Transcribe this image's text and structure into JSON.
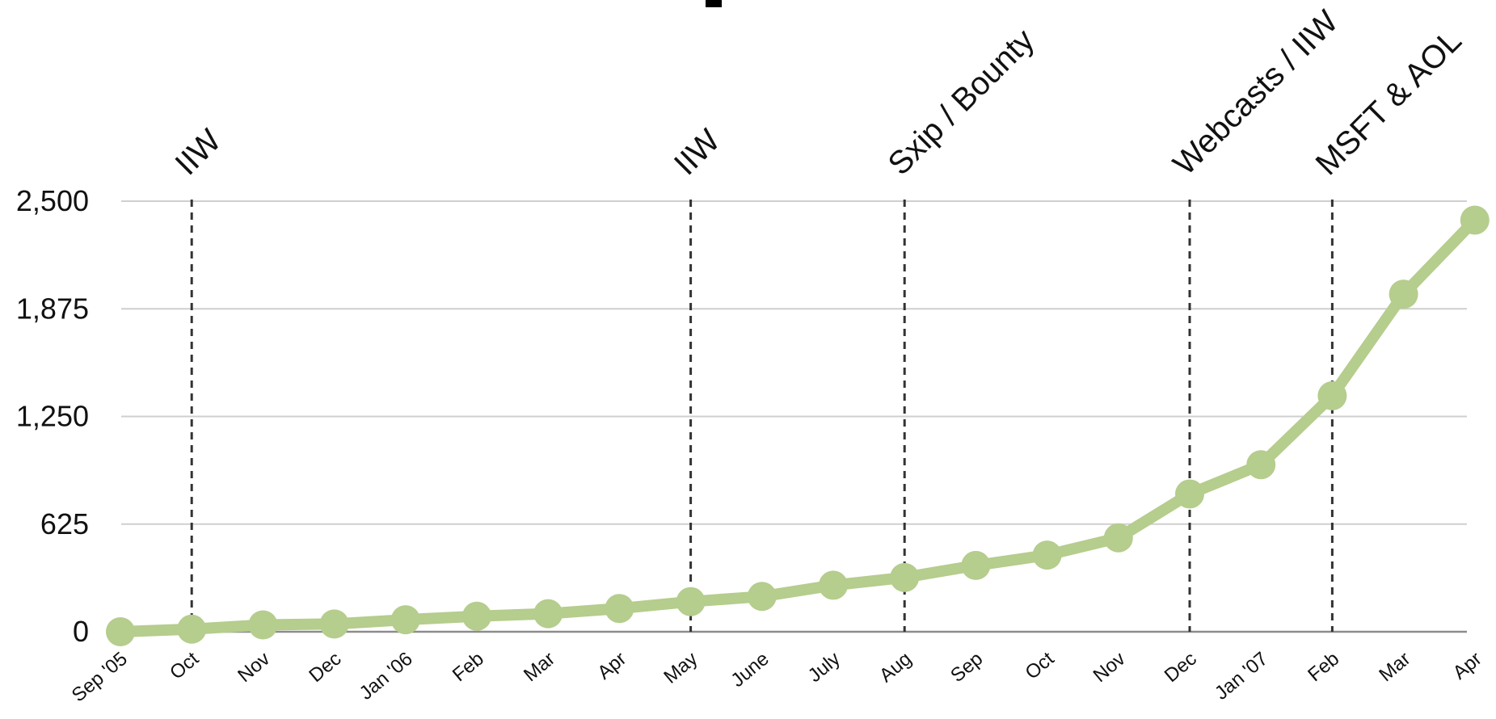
{
  "chart_data": {
    "type": "line",
    "title": "",
    "xlabel": "",
    "ylabel": "",
    "categories": [
      "Sep '05",
      "Oct",
      "Nov",
      "Dec",
      "Jan '06",
      "Feb",
      "Mar",
      "Apr",
      "May",
      "June",
      "July",
      "Aug",
      "Sep",
      "Oct",
      "Nov",
      "Dec",
      "Jan '07",
      "Feb",
      "Mar",
      "Apr"
    ],
    "values": [
      0,
      15,
      40,
      45,
      70,
      90,
      105,
      135,
      175,
      205,
      270,
      315,
      385,
      445,
      545,
      800,
      970,
      1370,
      1960,
      2390
    ],
    "ylim": [
      0,
      2500
    ],
    "yticks": [
      0,
      625,
      1250,
      1875,
      2500
    ],
    "ytick_labels": [
      "0",
      "625",
      "1,250",
      "1,875",
      "2,500"
    ],
    "grid": true,
    "legend": "none",
    "series_color": "#b5cd8d",
    "event_color": "#333333",
    "events": [
      {
        "index": 1,
        "label": "IIW"
      },
      {
        "index": 8,
        "label": "IIW"
      },
      {
        "index": 11,
        "label": "Sxip / Bounty"
      },
      {
        "index": 15,
        "label": "Webcasts / IIW"
      },
      {
        "index": 17,
        "label": "MSFT & AOL"
      }
    ]
  }
}
